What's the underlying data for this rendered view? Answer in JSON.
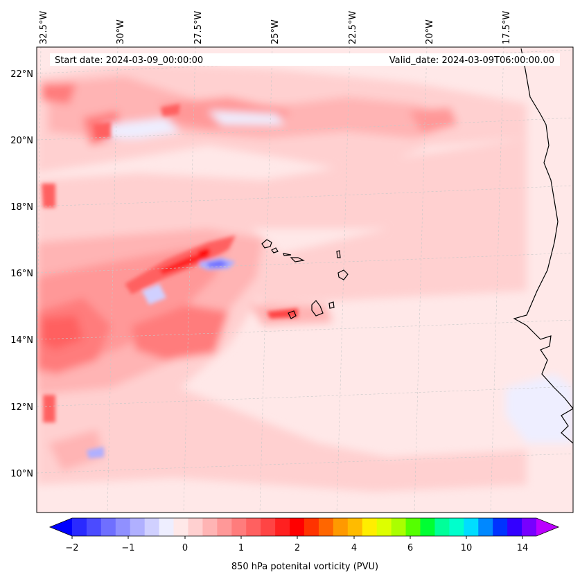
{
  "header": {
    "start_date": "Start date: 2024-03-09_00:00:00",
    "valid_date": "Valid_date: 2024-03-09T06:00:00.00"
  },
  "lon_labels": [
    "32.5°W",
    "30°W",
    "27.5°W",
    "25°W",
    "22.5°W",
    "20°W",
    "17.5°W"
  ],
  "lat_labels": [
    "22°N",
    "20°N",
    "18°N",
    "16°N",
    "14°N",
    "12°N",
    "10°N"
  ],
  "colorbar": {
    "title": "850 hPa potenital vorticity (PVU)",
    "tick_labels": [
      "−2",
      "−1",
      "0",
      "1",
      "2",
      "4",
      "6",
      "10",
      "14"
    ],
    "colors": [
      "#0000ff",
      "#2a2aff",
      "#4b4bff",
      "#6f6fff",
      "#9090ff",
      "#b0b0ff",
      "#d0d0ff",
      "#eeeeff",
      "#ffe8e8",
      "#ffd0d0",
      "#ffb4b4",
      "#ff9898",
      "#ff7c7c",
      "#ff6060",
      "#ff4444",
      "#ff2020",
      "#ff0000",
      "#ff3300",
      "#ff6600",
      "#ff9900",
      "#ffbb00",
      "#ffee00",
      "#ddff00",
      "#aaff00",
      "#55ff00",
      "#00ff33",
      "#00ff99",
      "#00ffcc",
      "#00ddff",
      "#0088ff",
      "#0033ff",
      "#3300ff",
      "#7700ff",
      "#bb00ff"
    ]
  },
  "colors": {
    "background_field": "#ffe8e8",
    "coastline": "#000000",
    "gridline": "#c8c8c8"
  }
}
